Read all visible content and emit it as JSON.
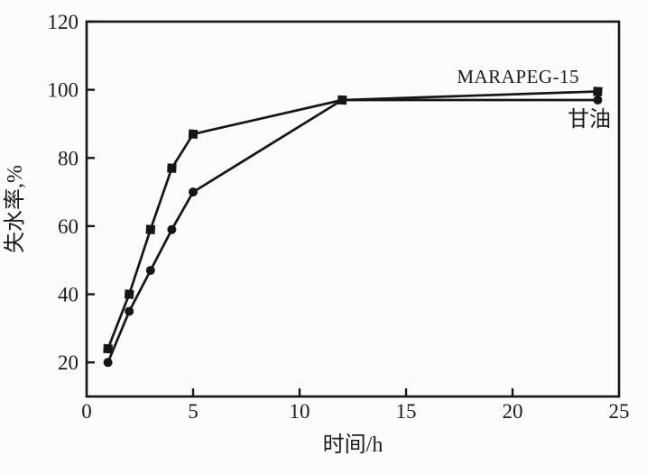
{
  "figure": {
    "background_color": "#fcfcfb",
    "line_color": "#161616",
    "text_color": "#1b1b1b"
  },
  "chart_data": {
    "type": "line",
    "title": "",
    "xlabel": "时间/h",
    "ylabel": "失水率,%",
    "xlim": [
      0,
      25
    ],
    "ylim": [
      10,
      120
    ],
    "x_ticks": [
      0,
      5,
      10,
      15,
      20,
      25
    ],
    "y_ticks": [
      20,
      40,
      60,
      80,
      100,
      120
    ],
    "grid": false,
    "legend_position": "inline-annotation",
    "x": [
      1,
      2,
      3,
      4,
      5,
      12,
      24
    ],
    "series": [
      {
        "name": "MARAPEG-15",
        "marker": "square",
        "color": "#161616",
        "values": [
          24,
          40,
          59,
          77,
          87,
          97,
          99.5
        ]
      },
      {
        "name": "甘油",
        "marker": "circle",
        "color": "#161616",
        "values": [
          20,
          35,
          47,
          59,
          70,
          97,
          97
        ]
      }
    ]
  }
}
